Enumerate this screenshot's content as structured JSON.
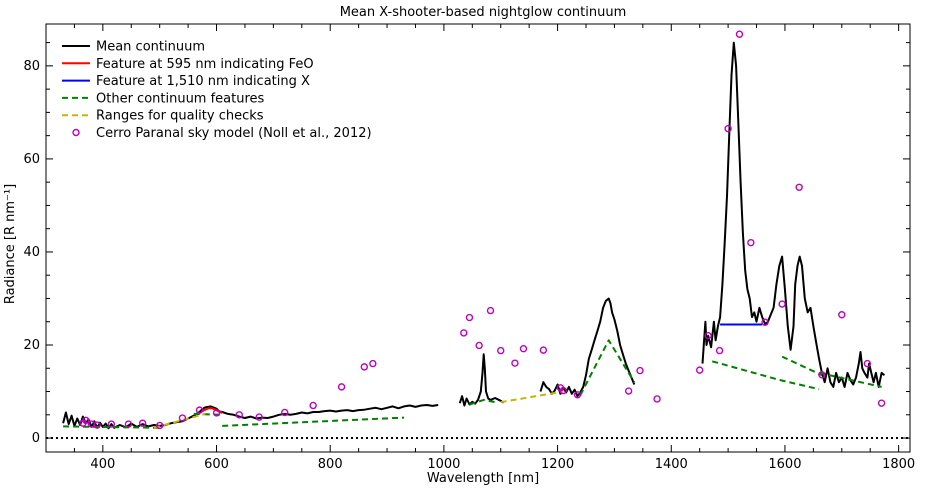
{
  "chart_data": {
    "type": "line",
    "title": "Mean X-shooter-based nightglow continuum",
    "xlabel": "Wavelength [nm]",
    "ylabel": "Radiance [R nm⁻¹]",
    "xlim": [
      300,
      1820
    ],
    "ylim": [
      -3,
      89
    ],
    "xticks": [
      400,
      600,
      800,
      1000,
      1200,
      1400,
      1600,
      1800
    ],
    "yticks": [
      0,
      20,
      40,
      60,
      80
    ],
    "grid": false,
    "legend_position": "top-left",
    "colors": {
      "mean": "#000000",
      "feo": "#ff0000",
      "x_feature": "#0000ff",
      "other": "#008000",
      "quality": "#c8b400",
      "model": "#c000c0"
    },
    "series": [
      {
        "name": "Mean continuum",
        "style": "solid",
        "color_key": "mean",
        "segments": [
          [
            [
              330,
              3.2
            ],
            [
              335,
              5.5
            ],
            [
              340,
              3
            ],
            [
              345,
              4.8
            ],
            [
              350,
              2.6
            ],
            [
              355,
              4.2
            ],
            [
              360,
              2.8
            ],
            [
              365,
              4.6
            ],
            [
              370,
              3.2
            ],
            [
              375,
              4
            ],
            [
              380,
              2.4
            ],
            [
              385,
              3.6
            ],
            [
              390,
              2.2
            ],
            [
              395,
              3.3
            ],
            [
              400,
              2.4
            ],
            [
              405,
              3.1
            ],
            [
              410,
              2.1
            ],
            [
              415,
              3
            ],
            [
              420,
              2.2
            ],
            [
              430,
              2.8
            ],
            [
              440,
              2.3
            ],
            [
              450,
              3.1
            ],
            [
              460,
              2.4
            ],
            [
              470,
              3
            ],
            [
              480,
              2.5
            ],
            [
              490,
              2.8
            ],
            [
              500,
              2.6
            ],
            [
              510,
              2.8
            ],
            [
              520,
              3.2
            ],
            [
              530,
              3.4
            ],
            [
              540,
              3.6
            ],
            [
              550,
              4.2
            ],
            [
              560,
              4.8
            ],
            [
              570,
              5.6
            ],
            [
              575,
              6.2
            ],
            [
              580,
              6.6
            ],
            [
              590,
              6.8
            ],
            [
              600,
              6.3
            ],
            [
              605,
              5.7
            ],
            [
              610,
              5.6
            ],
            [
              620,
              5.2
            ],
            [
              630,
              5
            ],
            [
              640,
              4.6
            ],
            [
              650,
              4.3
            ],
            [
              660,
              4.6
            ],
            [
              670,
              4.2
            ],
            [
              680,
              4.4
            ],
            [
              690,
              4.3
            ],
            [
              700,
              4.6
            ],
            [
              710,
              5
            ],
            [
              720,
              5.2
            ],
            [
              730,
              5
            ],
            [
              740,
              5.2
            ],
            [
              750,
              5.5
            ],
            [
              760,
              5.3
            ],
            [
              770,
              5.6
            ],
            [
              780,
              5.6
            ],
            [
              790,
              5.8
            ],
            [
              800,
              5.9
            ],
            [
              810,
              5.7
            ],
            [
              820,
              5.9
            ],
            [
              830,
              6
            ],
            [
              840,
              5.8
            ],
            [
              850,
              6
            ],
            [
              860,
              6.1
            ],
            [
              870,
              6.3
            ],
            [
              880,
              6.5
            ],
            [
              890,
              6.2
            ],
            [
              900,
              6.5
            ],
            [
              910,
              6.8
            ],
            [
              920,
              6.4
            ],
            [
              930,
              6.8
            ],
            [
              940,
              7
            ],
            [
              950,
              6.7
            ],
            [
              960,
              7
            ],
            [
              970,
              7.1
            ],
            [
              980,
              6.9
            ],
            [
              990,
              7.1
            ]
          ],
          [
            [
              1028,
              7.5
            ],
            [
              1032,
              9
            ],
            [
              1036,
              7
            ],
            [
              1040,
              8.5
            ],
            [
              1045,
              7.2
            ],
            [
              1050,
              7.8
            ],
            [
              1055,
              7.4
            ],
            [
              1060,
              8.2
            ],
            [
              1065,
              10
            ],
            [
              1068,
              14
            ],
            [
              1070,
              18
            ],
            [
              1072,
              15
            ],
            [
              1074,
              10
            ],
            [
              1078,
              8.5
            ],
            [
              1082,
              8.2
            ],
            [
              1090,
              8.6
            ],
            [
              1100,
              8
            ],
            [
              1105,
              7.6
            ]
          ],
          [
            [
              1170,
              10
            ],
            [
              1175,
              12
            ],
            [
              1180,
              11
            ],
            [
              1185,
              10.5
            ],
            [
              1190,
              9.5
            ],
            [
              1195,
              10.2
            ],
            [
              1200,
              11.5
            ],
            [
              1205,
              9.5
            ],
            [
              1210,
              10.8
            ],
            [
              1215,
              9.8
            ],
            [
              1220,
              11
            ],
            [
              1225,
              9.5
            ],
            [
              1230,
              10.4
            ],
            [
              1235,
              9
            ],
            [
              1240,
              9.8
            ],
            [
              1245,
              11
            ],
            [
              1250,
              13.5
            ],
            [
              1255,
              17
            ],
            [
              1260,
              19
            ],
            [
              1265,
              21
            ],
            [
              1270,
              23
            ],
            [
              1275,
              25
            ],
            [
              1280,
              28
            ],
            [
              1285,
              29.5
            ],
            [
              1290,
              30
            ],
            [
              1293,
              29
            ],
            [
              1296,
              27
            ],
            [
              1300,
              25.5
            ],
            [
              1305,
              23
            ],
            [
              1310,
              20
            ],
            [
              1315,
              18
            ],
            [
              1320,
              16
            ],
            [
              1325,
              14.5
            ],
            [
              1330,
              13
            ],
            [
              1335,
              11.5
            ]
          ],
          [
            [
              1455,
              16
            ],
            [
              1460,
              25
            ],
            [
              1462,
              20
            ],
            [
              1465,
              22
            ],
            [
              1470,
              19.5
            ],
            [
              1475,
              25
            ],
            [
              1478,
              21
            ],
            [
              1482,
              24
            ],
            [
              1486,
              26
            ],
            [
              1490,
              33
            ],
            [
              1494,
              42
            ],
            [
              1498,
              52
            ],
            [
              1502,
              65
            ],
            [
              1506,
              78
            ],
            [
              1510,
              85
            ],
            [
              1514,
              80
            ],
            [
              1518,
              68
            ],
            [
              1522,
              55
            ],
            [
              1526,
              44
            ],
            [
              1530,
              36
            ],
            [
              1534,
              32
            ],
            [
              1538,
              30
            ],
            [
              1542,
              26
            ],
            [
              1546,
              27
            ],
            [
              1550,
              25
            ],
            [
              1555,
              28
            ],
            [
              1560,
              26
            ],
            [
              1565,
              24.5
            ],
            [
              1570,
              25
            ],
            [
              1575,
              26.5
            ],
            [
              1580,
              28
            ],
            [
              1585,
              33
            ],
            [
              1590,
              37
            ],
            [
              1595,
              39
            ],
            [
              1600,
              32
            ],
            [
              1605,
              24
            ],
            [
              1610,
              19
            ],
            [
              1615,
              24
            ],
            [
              1618,
              33
            ],
            [
              1622,
              37
            ],
            [
              1626,
              39
            ],
            [
              1630,
              37
            ],
            [
              1635,
              30
            ],
            [
              1640,
              27
            ],
            [
              1645,
              28
            ],
            [
              1650,
              24
            ],
            [
              1655,
              20.5
            ],
            [
              1660,
              17
            ],
            [
              1665,
              14
            ],
            [
              1670,
              12
            ],
            [
              1675,
              15
            ],
            [
              1680,
              12
            ],
            [
              1685,
              11
            ],
            [
              1690,
              14
            ],
            [
              1695,
              12
            ],
            [
              1700,
              13
            ],
            [
              1705,
              11
            ],
            [
              1710,
              14
            ],
            [
              1715,
              12.5
            ],
            [
              1720,
              11.5
            ],
            [
              1725,
              13
            ],
            [
              1730,
              16
            ],
            [
              1733,
              18.5
            ],
            [
              1736,
              15
            ],
            [
              1740,
              14
            ],
            [
              1745,
              13
            ],
            [
              1748,
              16
            ],
            [
              1752,
              14
            ],
            [
              1756,
              12
            ],
            [
              1760,
              14
            ],
            [
              1765,
              11
            ],
            [
              1770,
              14
            ],
            [
              1775,
              13.5
            ]
          ]
        ]
      },
      {
        "name": "Feature at 595 nm indicating FeO",
        "style": "solid",
        "color_key": "feo",
        "segments": [
          [
            [
              574,
              5.7
            ],
            [
              580,
              6.1
            ],
            [
              586,
              6.4
            ],
            [
              592,
              6.4
            ],
            [
              598,
              6.1
            ],
            [
              604,
              5.7
            ],
            [
              610,
              5.4
            ]
          ]
        ]
      },
      {
        "name": "Feature at 1,510 nm indicating X",
        "style": "solid",
        "color_key": "x_feature",
        "segments": [
          [
            [
              1486,
              24.4
            ],
            [
              1560,
              24.4
            ]
          ]
        ]
      },
      {
        "name": "Other continuum features",
        "style": "dashed",
        "color_key": "other",
        "segments": [
          [
            [
              330,
              2.5
            ],
            [
              500,
              2.2
            ]
          ],
          [
            [
              560,
              5.2
            ],
            [
              610,
              5
            ]
          ],
          [
            [
              610,
              2.6
            ],
            [
              930,
              4.4
            ]
          ],
          [
            [
              1045,
              7.2
            ],
            [
              1070,
              8.2
            ],
            [
              1095,
              7.6
            ]
          ],
          [
            [
              1240,
              9.2
            ],
            [
              1290,
              21
            ],
            [
              1335,
              12
            ]
          ],
          [
            [
              1472,
              16.5
            ],
            [
              1590,
              12.5
            ],
            [
              1660,
              10.5
            ]
          ],
          [
            [
              1595,
              17.5
            ],
            [
              1665,
              13.5
            ]
          ],
          [
            [
              1660,
              14
            ],
            [
              1770,
              11
            ]
          ]
        ]
      },
      {
        "name": "Ranges for quality checks",
        "style": "dashed",
        "color_key": "quality",
        "segments": [
          [
            [
              490,
              2.2
            ],
            [
              580,
              5.2
            ]
          ],
          [
            [
              1100,
              7.7
            ],
            [
              1210,
              10
            ]
          ]
        ]
      }
    ],
    "scatter": {
      "name": "Cerro Paranal sky model (Noll et al., 2012)",
      "color_key": "model",
      "points": [
        [
          365,
          3.2
        ],
        [
          370,
          3.8
        ],
        [
          380,
          3
        ],
        [
          390,
          2.8
        ],
        [
          415,
          3
        ],
        [
          445,
          3
        ],
        [
          470,
          3.2
        ],
        [
          500,
          2.7
        ],
        [
          540,
          4.3
        ],
        [
          570,
          6
        ],
        [
          600,
          5.4
        ],
        [
          640,
          5
        ],
        [
          675,
          4.5
        ],
        [
          720,
          5.5
        ],
        [
          770,
          7
        ],
        [
          820,
          11
        ],
        [
          860,
          15.3
        ],
        [
          875,
          16
        ],
        [
          1035,
          22.6
        ],
        [
          1045,
          25.9
        ],
        [
          1062,
          19.9
        ],
        [
          1082,
          27.4
        ],
        [
          1100,
          18.8
        ],
        [
          1125,
          16.1
        ],
        [
          1140,
          19.2
        ],
        [
          1175,
          18.9
        ],
        [
          1205,
          10.8
        ],
        [
          1210,
          10.2
        ],
        [
          1235,
          9.3
        ],
        [
          1325,
          10.1
        ],
        [
          1345,
          14.5
        ],
        [
          1375,
          8.4
        ],
        [
          1450,
          14.6
        ],
        [
          1465,
          22
        ],
        [
          1485,
          18.8
        ],
        [
          1500,
          66.5
        ],
        [
          1520,
          86.8
        ],
        [
          1540,
          42
        ],
        [
          1565,
          24.9
        ],
        [
          1595,
          28.8
        ],
        [
          1625,
          53.9
        ],
        [
          1665,
          13.6
        ],
        [
          1700,
          26.5
        ],
        [
          1745,
          16
        ],
        [
          1770,
          7.5
        ]
      ]
    },
    "zero_line": {
      "y": 0,
      "style": "dotted"
    }
  }
}
